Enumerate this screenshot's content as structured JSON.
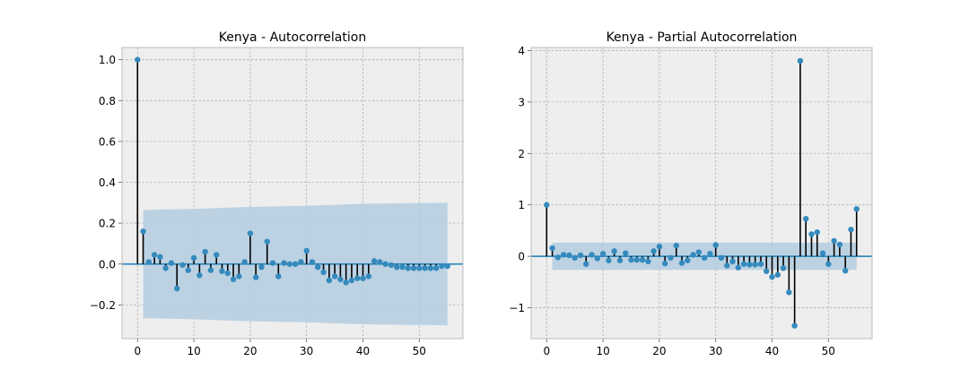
{
  "chart_data": [
    {
      "type": "stem",
      "title": "Kenya - Autocorrelation",
      "xlabel": "",
      "ylabel": "",
      "xlim": [
        -2.75,
        57.75
      ],
      "ylim": [
        -0.365,
        1.06
      ],
      "xticks": [
        0,
        10,
        20,
        30,
        40,
        50
      ],
      "yticks": [
        -0.2,
        0.0,
        0.2,
        0.4,
        0.6,
        0.8,
        1.0
      ],
      "ytick_labels": [
        "−0.2",
        "0.0",
        "0.2",
        "0.4",
        "0.6",
        "0.8",
        "1.0"
      ],
      "grid": true,
      "lags": [
        0,
        1,
        2,
        3,
        4,
        5,
        6,
        7,
        8,
        9,
        10,
        11,
        12,
        13,
        14,
        15,
        16,
        17,
        18,
        19,
        20,
        21,
        22,
        23,
        24,
        25,
        26,
        27,
        28,
        29,
        30,
        31,
        32,
        33,
        34,
        35,
        36,
        37,
        38,
        39,
        40,
        41,
        42,
        43,
        44,
        45,
        46,
        47,
        48,
        49,
        50,
        51,
        52,
        53,
        54,
        55
      ],
      "values": [
        1.0,
        0.16,
        0.01,
        0.045,
        0.035,
        -0.02,
        0.005,
        -0.12,
        -0.005,
        -0.03,
        0.03,
        -0.055,
        0.06,
        -0.03,
        0.045,
        -0.035,
        -0.045,
        -0.075,
        -0.06,
        0.01,
        0.15,
        -0.065,
        -0.015,
        0.11,
        0.005,
        -0.06,
        0.005,
        0.0,
        0.0,
        0.01,
        0.065,
        0.01,
        -0.015,
        -0.04,
        -0.08,
        -0.06,
        -0.075,
        -0.09,
        -0.08,
        -0.07,
        -0.07,
        -0.06,
        0.015,
        0.01,
        0.0,
        -0.005,
        -0.015,
        -0.015,
        -0.02,
        -0.02,
        -0.02,
        -0.02,
        -0.02,
        -0.02,
        -0.01,
        -0.01
      ],
      "confidence_band": {
        "color": "#b3cde0",
        "lags": [
          1,
          10,
          20,
          30,
          40,
          55
        ],
        "upper": [
          0.265,
          0.27,
          0.28,
          0.285,
          0.295,
          0.3
        ],
        "lower": [
          -0.265,
          -0.27,
          -0.28,
          -0.285,
          -0.295,
          -0.3
        ]
      }
    },
    {
      "type": "stem",
      "title": "Kenya - Partial Autocorrelation",
      "xlabel": "",
      "ylabel": "",
      "xlim": [
        -2.75,
        57.75
      ],
      "ylim": [
        -1.6,
        4.06
      ],
      "xticks": [
        0,
        10,
        20,
        30,
        40,
        50
      ],
      "yticks": [
        -1,
        0,
        1,
        2,
        3,
        4
      ],
      "ytick_labels": [
        "−1",
        "0",
        "1",
        "2",
        "3",
        "4"
      ],
      "grid": true,
      "lags": [
        0,
        1,
        2,
        3,
        4,
        5,
        6,
        7,
        8,
        9,
        10,
        11,
        12,
        13,
        14,
        15,
        16,
        17,
        18,
        19,
        20,
        21,
        22,
        23,
        24,
        25,
        26,
        27,
        28,
        29,
        30,
        31,
        32,
        33,
        34,
        35,
        36,
        37,
        38,
        39,
        40,
        41,
        42,
        43,
        44,
        45,
        46,
        47,
        48,
        49,
        50,
        51,
        52,
        53,
        54,
        55
      ],
      "values": [
        1.0,
        0.16,
        -0.02,
        0.03,
        0.02,
        -0.03,
        0.02,
        -0.15,
        0.03,
        -0.04,
        0.05,
        -0.08,
        0.1,
        -0.08,
        0.06,
        -0.07,
        -0.07,
        -0.07,
        -0.1,
        0.1,
        0.19,
        -0.14,
        -0.03,
        0.21,
        -0.13,
        -0.08,
        0.03,
        0.08,
        -0.03,
        0.05,
        0.22,
        -0.03,
        -0.18,
        -0.1,
        -0.22,
        -0.15,
        -0.16,
        -0.16,
        -0.15,
        -0.29,
        -0.4,
        -0.36,
        -0.23,
        -0.7,
        -1.35,
        3.8,
        0.73,
        0.43,
        0.47,
        0.06,
        -0.15,
        0.3,
        0.23,
        -0.28,
        0.52,
        0.92
      ],
      "confidence_band": {
        "color": "#b3cde0",
        "lags": [
          1,
          55
        ],
        "upper": [
          0.265,
          0.265
        ],
        "lower": [
          -0.265,
          -0.265
        ]
      }
    }
  ],
  "style": {
    "axes_background": "#eeeeee",
    "accent_line": "#348abd",
    "marker": "#348abd",
    "stem": "#000000"
  }
}
